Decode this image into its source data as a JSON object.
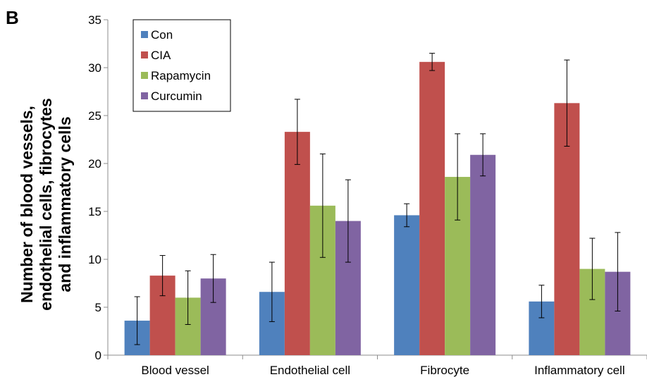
{
  "panel_label": "B",
  "chart_data": {
    "type": "bar",
    "ylabel": [
      "Number of blood vessels,",
      "endothelial cells, fibrocytes",
      "and inflammatory cells"
    ],
    "xlabel": "",
    "ylim": [
      0,
      35
    ],
    "yticks": [
      "0",
      "5",
      "10",
      "15",
      "20",
      "25",
      "30",
      "35"
    ],
    "grid": false,
    "legend_position": "top-left",
    "categories": [
      "Blood vessel",
      "Endothelial cell",
      "Fibrocyte",
      "Inflammatory cell"
    ],
    "series": [
      {
        "name": "Con",
        "color": "#4f81bd",
        "values": [
          3.6,
          6.6,
          14.6,
          5.6
        ],
        "errors": [
          2.5,
          3.1,
          1.2,
          1.7
        ]
      },
      {
        "name": "CIA",
        "color": "#c0504d",
        "values": [
          8.3,
          23.3,
          30.6,
          26.3
        ],
        "errors": [
          2.1,
          3.4,
          0.9,
          4.5
        ]
      },
      {
        "name": "Rapamycin",
        "color": "#9bbb59",
        "values": [
          6.0,
          15.6,
          18.6,
          9.0
        ],
        "errors": [
          2.8,
          5.4,
          4.5,
          3.2
        ]
      },
      {
        "name": "Curcumin",
        "color": "#8064a2",
        "values": [
          8.0,
          14.0,
          20.9,
          8.7
        ],
        "errors": [
          2.5,
          4.3,
          2.2,
          4.1
        ]
      }
    ]
  }
}
